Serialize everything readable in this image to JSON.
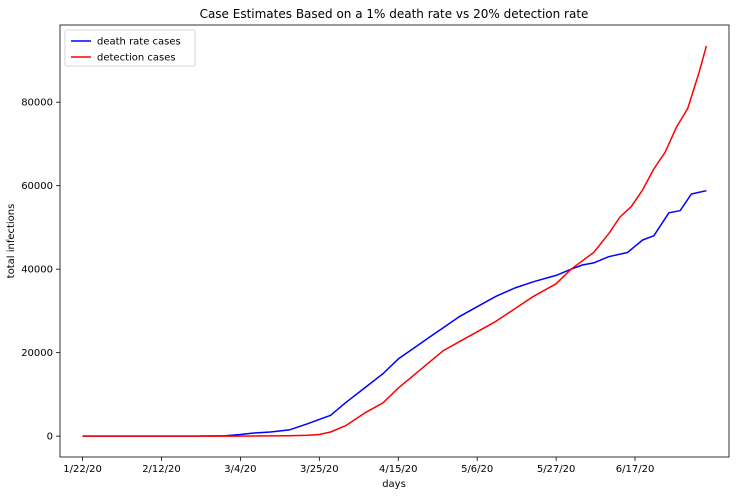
{
  "chart_data": {
    "type": "line",
    "title": "Case Estimates Based on a 1% death rate vs 20% detection rate",
    "xlabel": "days",
    "ylabel": "total infections",
    "x_tick_labels": [
      "1/22/20",
      "2/12/20",
      "3/4/20",
      "3/25/20",
      "4/15/20",
      "5/6/20",
      "5/27/20",
      "6/17/20"
    ],
    "x_tick_days": [
      0,
      21,
      42,
      63,
      84,
      105,
      126,
      147
    ],
    "xlim": [
      -6,
      172
    ],
    "y_ticks": [
      0,
      20000,
      40000,
      60000,
      80000
    ],
    "ylim": [
      -5000,
      98500
    ],
    "grid": false,
    "legend": "upper-left",
    "series": [
      {
        "name": "death rate cases",
        "color": "#0000ff",
        "x": [
          0,
          10,
          20,
          30,
          38,
          42,
          45,
          50,
          55,
          60,
          63,
          66,
          70,
          75,
          80,
          84,
          88,
          92,
          96,
          100,
          105,
          110,
          115,
          120,
          126,
          130,
          133,
          136,
          140,
          145,
          149,
          152,
          156,
          159,
          162,
          166
        ],
        "y": [
          0,
          0,
          0,
          0,
          100,
          400,
          700,
          1000,
          1500,
          3000,
          4000,
          5000,
          8000,
          11500,
          15000,
          18500,
          21000,
          23500,
          26000,
          28500,
          31000,
          33500,
          35500,
          37000,
          38500,
          40000,
          41000,
          41500,
          43000,
          44000,
          47000,
          48000,
          53500,
          54000,
          58000,
          58800
        ]
      },
      {
        "name": "detection cases",
        "color": "#ff0000",
        "x": [
          0,
          10,
          20,
          30,
          40,
          50,
          55,
          60,
          63,
          66,
          70,
          75,
          80,
          84,
          88,
          92,
          96,
          100,
          105,
          110,
          115,
          120,
          126,
          130,
          133,
          136,
          140,
          143,
          146,
          149,
          152,
          155,
          158,
          161,
          164,
          166
        ],
        "y": [
          0,
          0,
          0,
          0,
          0,
          50,
          100,
          200,
          400,
          1000,
          2500,
          5500,
          8000,
          11500,
          14500,
          17500,
          20500,
          22500,
          25000,
          27500,
          30500,
          33500,
          36500,
          40000,
          42000,
          44000,
          48500,
          52500,
          55000,
          59000,
          64000,
          68000,
          74000,
          78500,
          87000,
          93500
        ]
      }
    ]
  }
}
